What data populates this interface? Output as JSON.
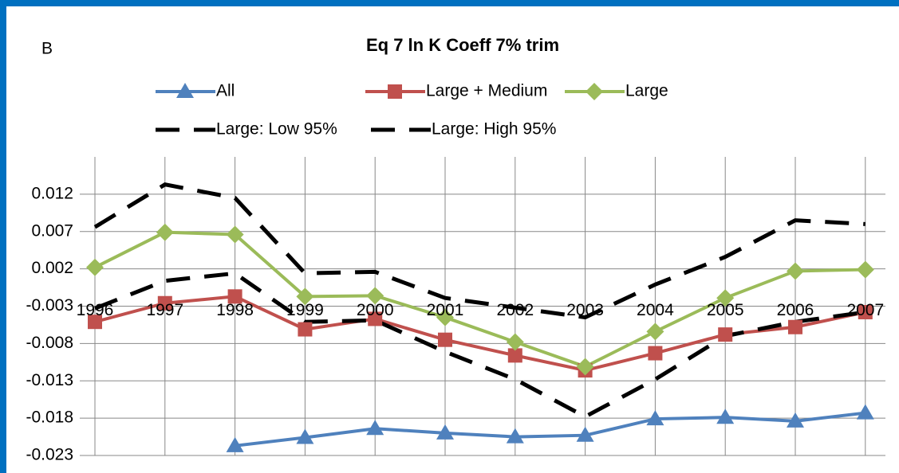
{
  "chart_data": {
    "type": "line",
    "title": "Eq 7 ln K Coeff 7% trim",
    "panel_label": "B",
    "categories": [
      "1996",
      "1997",
      "1998",
      "1999",
      "2000",
      "2001",
      "2002",
      "2003",
      "2004",
      "2005",
      "2006",
      "2007"
    ],
    "series": [
      {
        "name": "All",
        "color": "#4f81bd",
        "marker": "triangle",
        "dashed": false,
        "values": [
          null,
          null,
          -0.0217,
          -0.0206,
          -0.0194,
          -0.02,
          -0.0205,
          -0.0203,
          -0.0181,
          -0.0179,
          -0.0184,
          -0.0173
        ]
      },
      {
        "name": "Large + Medium",
        "color": "#c0504d",
        "marker": "square",
        "dashed": false,
        "values": [
          -0.0051,
          -0.0026,
          -0.0017,
          -0.0061,
          -0.0047,
          -0.0075,
          -0.0096,
          -0.0116,
          -0.0093,
          -0.0068,
          -0.0058,
          -0.0038
        ]
      },
      {
        "name": "Large",
        "color": "#9bbb59",
        "marker": "diamond",
        "dashed": false,
        "values": [
          0.0022,
          0.0069,
          0.0066,
          -0.0017,
          -0.0016,
          -0.0045,
          -0.0078,
          -0.0111,
          -0.0064,
          -0.0019,
          0.0017,
          0.0019
        ]
      },
      {
        "name": "Large: Low 95%",
        "color": "#000000",
        "marker": "none",
        "dashed": true,
        "values": [
          -0.0033,
          0.0004,
          0.0014,
          -0.0051,
          -0.0049,
          -0.0091,
          -0.0128,
          -0.0178,
          -0.0128,
          -0.007,
          -0.0051,
          -0.0038
        ]
      },
      {
        "name": "Large: High 95%",
        "color": "#000000",
        "marker": "none",
        "dashed": true,
        "values": [
          0.0076,
          0.0133,
          0.0115,
          0.0014,
          0.0016,
          -0.0019,
          -0.0032,
          -0.0045,
          -0.0001,
          0.0036,
          0.0085,
          0.008
        ]
      }
    ],
    "ylim": [
      -0.023,
      0.017
    ],
    "yticks": [
      -0.023,
      -0.018,
      -0.013,
      -0.008,
      -0.003,
      0.002,
      0.007,
      0.012
    ],
    "grid": true,
    "legend": "top"
  }
}
